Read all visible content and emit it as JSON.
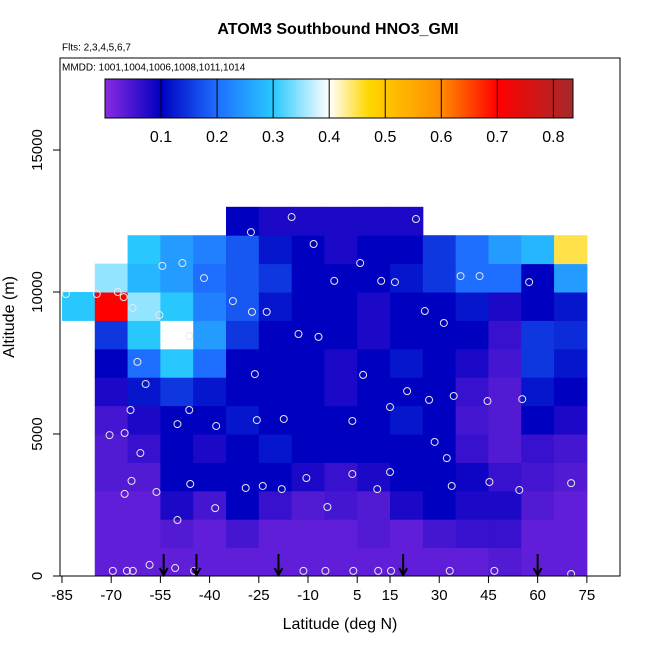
{
  "chart_data": {
    "type": "heatmap",
    "title": "ATOM3 Southbound HNO3_GMI",
    "subtitle": "Flts: 2,3,4,5,6,7",
    "annotation": "MMDD: 1001,1004,1006,1008,1011,1014",
    "x_label": "Latitude (deg N)",
    "y_label": "Altitude (m)",
    "xlim": [
      -85.6,
      85.1
    ],
    "ylim": [
      0,
      18240
    ],
    "xticks": [
      -85,
      -70,
      -55,
      -40,
      -25,
      -10,
      5,
      15,
      30,
      45,
      60,
      75
    ],
    "yticks": [
      0,
      5000,
      10000,
      15000
    ],
    "x": [
      -80,
      -70,
      -60,
      -50,
      -40,
      -30,
      -20,
      -10,
      0,
      10,
      20,
      30,
      40,
      50,
      60,
      70
    ],
    "y": [
      0,
      1000,
      2000,
      3000,
      4000,
      5000,
      6000,
      7000,
      8000,
      9000,
      10000,
      11000,
      12000
    ],
    "values": [
      [
        null,
        0.03,
        0.03,
        0.03,
        0.03,
        0.03,
        0.03,
        0.03,
        0.03,
        0.03,
        0.03,
        0.03,
        0.03,
        0.04,
        0.03,
        0.03
      ],
      [
        null,
        0.03,
        0.03,
        0.04,
        0.03,
        0.05,
        0.03,
        0.03,
        0.03,
        0.04,
        0.03,
        0.05,
        0.06,
        0.06,
        0.03,
        0.03
      ],
      [
        null,
        0.03,
        0.03,
        0.08,
        0.05,
        0.1,
        0.06,
        0.04,
        0.05,
        0.04,
        0.08,
        0.1,
        0.08,
        0.08,
        0.04,
        0.03
      ],
      [
        null,
        0.04,
        0.04,
        0.1,
        0.1,
        0.1,
        0.1,
        0.08,
        0.06,
        0.08,
        0.1,
        0.1,
        0.09,
        0.06,
        0.05,
        0.04
      ],
      [
        null,
        0.04,
        0.06,
        0.1,
        0.08,
        0.1,
        0.12,
        0.1,
        0.1,
        0.1,
        0.1,
        0.1,
        0.06,
        0.04,
        0.06,
        0.05
      ],
      [
        null,
        0.05,
        0.08,
        0.1,
        0.1,
        0.12,
        0.1,
        0.1,
        0.1,
        0.1,
        0.12,
        0.1,
        0.05,
        0.04,
        0.1,
        0.08
      ],
      [
        null,
        0.08,
        0.12,
        0.15,
        0.12,
        0.1,
        0.1,
        0.1,
        0.08,
        0.1,
        0.1,
        0.1,
        0.06,
        0.04,
        0.12,
        0.1
      ],
      [
        null,
        0.1,
        0.2,
        0.3,
        0.2,
        0.1,
        0.1,
        0.1,
        0.08,
        0.1,
        0.12,
        0.1,
        0.08,
        0.05,
        0.15,
        0.12
      ],
      [
        null,
        0.15,
        0.3,
        0.4,
        0.25,
        0.15,
        0.1,
        0.1,
        0.1,
        0.08,
        0.1,
        0.1,
        0.1,
        0.06,
        0.15,
        0.14
      ],
      [
        0.3,
        0.7,
        0.35,
        0.3,
        0.22,
        0.18,
        0.12,
        0.1,
        0.1,
        0.08,
        0.1,
        0.1,
        0.12,
        0.08,
        0.1,
        0.12
      ],
      [
        null,
        0.35,
        0.28,
        0.25,
        0.2,
        0.18,
        0.15,
        0.1,
        0.1,
        0.1,
        0.12,
        0.15,
        0.2,
        0.2,
        0.1,
        0.25
      ],
      [
        null,
        null,
        0.3,
        0.25,
        0.22,
        0.18,
        0.12,
        0.1,
        0.08,
        0.1,
        0.1,
        0.15,
        0.2,
        0.25,
        0.28,
        0.45
      ],
      [
        null,
        null,
        null,
        null,
        null,
        0.1,
        0.08,
        0.08,
        0.08,
        0.08,
        0.08,
        null,
        null,
        null,
        null,
        null
      ]
    ],
    "colorbar_lim": [
      0,
      0.835
    ],
    "colorbar_ticks": [
      0.1,
      0.2,
      0.3,
      0.4,
      0.5,
      0.6,
      0.7,
      0.8
    ],
    "colorscale": [
      [
        0,
        "#8a2be2"
      ],
      [
        0.1,
        "#0000c0"
      ],
      [
        0.2,
        "#1e6eff"
      ],
      [
        0.3,
        "#28c8ff"
      ],
      [
        0.4,
        "#ffffff"
      ],
      [
        0.47,
        "#ffd700"
      ],
      [
        0.6,
        "#ff8c00"
      ],
      [
        0.7,
        "#ff0000"
      ],
      [
        0.835,
        "#a52a2a"
      ]
    ],
    "samples": {
      "x": [
        -69.5,
        -65.2,
        -63.4,
        -50.5,
        -44.7,
        -11.4,
        -4.7,
        3.8,
        11.4,
        15.3,
        33.2,
        46.8,
        70.2,
        -58.3,
        -70.5,
        -65.9,
        -64.1,
        -61.1,
        -38,
        -46.2,
        -49.8,
        -25.6,
        -17.4,
        3.5,
        15,
        20.2,
        26.9,
        34.4,
        44.7,
        55.3,
        28.6,
        32.3,
        3.5,
        15,
        11.1,
        33.8,
        45.3,
        54.4,
        -10.5,
        -18,
        -23.8,
        -29,
        -45.9,
        -56.2,
        -65.9,
        -63.8,
        -49.8,
        -38.3,
        -4.1,
        70.2,
        -83.8,
        -74.4,
        -68,
        -66.2,
        -63.5,
        -55.3,
        -46.2,
        -32.9,
        -27.1,
        -22.6,
        -12.9,
        -6.8,
        25.6,
        31.4,
        6.8,
        -26.2,
        -62,
        -59.5,
        -48.3,
        -54.4,
        -41.7,
        -27.4,
        -15,
        -8.3,
        -2,
        5.9,
        12.3,
        16.5,
        22.9,
        36.5,
        42.3,
        57.4
      ],
      "y": [
        180,
        180,
        180,
        280,
        180,
        180,
        180,
        180,
        180,
        180,
        180,
        180,
        70,
        390,
        4960,
        5035,
        5845,
        4330,
        5280,
        5845,
        5350,
        5490,
        5530,
        5460,
        5950,
        6510,
        6200,
        6340,
        6160,
        6230,
        4720,
        4150,
        3590,
        3660,
        3060,
        3170,
        3310,
        3030,
        3450,
        3060,
        3170,
        3100,
        3240,
        2960,
        2890,
        3350,
        1970,
        2390,
        2430,
        3270,
        9930,
        9930,
        10000,
        9820,
        9440,
        9190,
        8450,
        9680,
        9300,
        9300,
        8520,
        8420,
        9330,
        8910,
        7080,
        7110,
        7540,
        6760,
        11020,
        10920,
        10490,
        12110,
        12640,
        11690,
        10390,
        11020,
        10390,
        10350,
        12570,
        10560,
        10560,
        10350
      ]
    },
    "arrows": [
      -54,
      -44,
      -19,
      19,
      60
    ]
  }
}
